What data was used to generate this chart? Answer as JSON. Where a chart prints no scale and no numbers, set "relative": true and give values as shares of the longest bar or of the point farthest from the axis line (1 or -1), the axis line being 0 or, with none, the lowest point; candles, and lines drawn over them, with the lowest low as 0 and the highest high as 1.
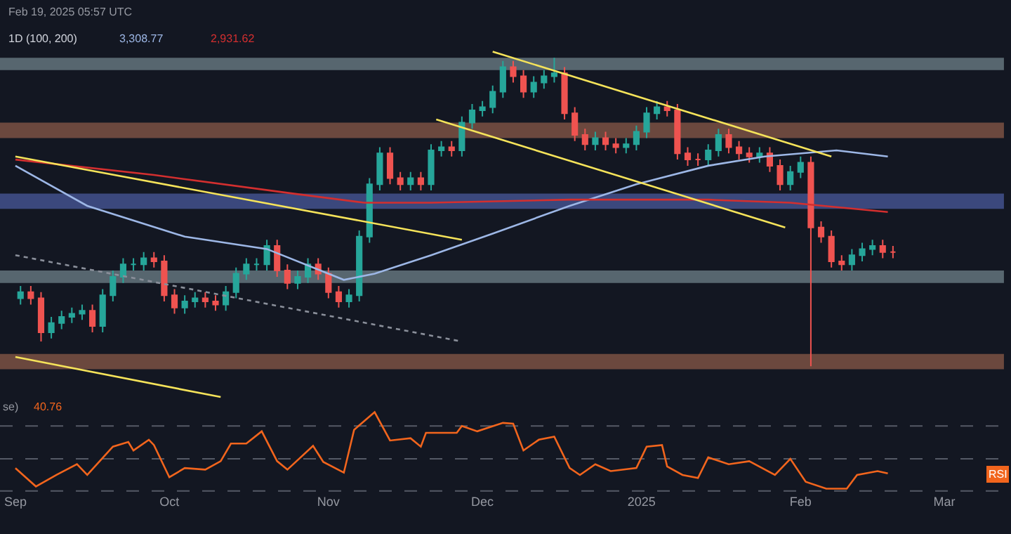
{
  "chart_data": [
    {
      "type": "candlestick",
      "relative": true,
      "tick_labels": false,
      "grid": false,
      "annotations": [
        "Feb 19, 2025 05:57 UTC",
        "1D (100, 200)",
        "3,308.77",
        "2,931.62"
      ],
      "xlim": [
        "2024-08-29",
        "2025-03-14"
      ],
      "x": [
        "2024-09-02",
        "2024-09-04",
        "2024-09-06",
        "2024-09-08",
        "2024-09-10",
        "2024-09-12",
        "2024-09-14",
        "2024-09-16",
        "2024-09-18",
        "2024-09-20",
        "2024-09-22",
        "2024-09-24",
        "2024-09-26",
        "2024-09-28",
        "2024-09-30",
        "2024-10-02",
        "2024-10-04",
        "2024-10-06",
        "2024-10-08",
        "2024-10-10",
        "2024-10-12",
        "2024-10-14",
        "2024-10-16",
        "2024-10-18",
        "2024-10-20",
        "2024-10-22",
        "2024-10-24",
        "2024-10-26",
        "2024-10-28",
        "2024-10-30",
        "2024-11-01",
        "2024-11-03",
        "2024-11-05",
        "2024-11-07",
        "2024-11-09",
        "2024-11-11",
        "2024-11-13",
        "2024-11-15",
        "2024-11-17",
        "2024-11-19",
        "2024-11-21",
        "2024-11-23",
        "2024-11-25",
        "2024-11-27",
        "2024-11-29",
        "2024-12-01",
        "2024-12-03",
        "2024-12-05",
        "2024-12-07",
        "2024-12-09",
        "2024-12-11",
        "2024-12-13",
        "2024-12-15",
        "2024-12-17",
        "2024-12-19",
        "2024-12-21",
        "2024-12-23",
        "2024-12-25",
        "2024-12-27",
        "2024-12-29",
        "2024-12-31",
        "2025-01-02",
        "2025-01-04",
        "2025-01-06",
        "2025-01-08",
        "2025-01-10",
        "2025-01-12",
        "2025-01-14",
        "2025-01-16",
        "2025-01-18",
        "2025-01-20",
        "2025-01-22",
        "2025-01-24",
        "2025-01-26",
        "2025-01-28",
        "2025-01-30",
        "2025-02-01",
        "2025-02-03",
        "2025-02-05",
        "2025-02-07",
        "2025-02-09",
        "2025-02-11",
        "2025-02-13",
        "2025-02-15",
        "2025-02-17",
        "2025-02-19"
      ],
      "ohlc": [
        [
          0.22,
          0.26,
          0.2,
          0.24
        ],
        [
          0.24,
          0.26,
          0.2,
          0.22
        ],
        [
          0.22,
          0.24,
          0.08,
          0.11
        ],
        [
          0.11,
          0.16,
          0.09,
          0.14
        ],
        [
          0.14,
          0.18,
          0.12,
          0.16
        ],
        [
          0.16,
          0.19,
          0.14,
          0.17
        ],
        [
          0.17,
          0.2,
          0.15,
          0.18
        ],
        [
          0.18,
          0.2,
          0.11,
          0.13
        ],
        [
          0.13,
          0.25,
          0.11,
          0.23
        ],
        [
          0.23,
          0.31,
          0.21,
          0.29
        ],
        [
          0.29,
          0.35,
          0.27,
          0.33
        ],
        [
          0.33,
          0.35,
          0.31,
          0.33
        ],
        [
          0.33,
          0.37,
          0.31,
          0.35
        ],
        [
          0.35,
          0.37,
          0.32,
          0.34
        ],
        [
          0.34,
          0.36,
          0.21,
          0.23
        ],
        [
          0.23,
          0.25,
          0.17,
          0.19
        ],
        [
          0.19,
          0.23,
          0.17,
          0.21
        ],
        [
          0.21,
          0.24,
          0.19,
          0.22
        ],
        [
          0.22,
          0.24,
          0.19,
          0.21
        ],
        [
          0.21,
          0.23,
          0.18,
          0.2
        ],
        [
          0.2,
          0.26,
          0.18,
          0.24
        ],
        [
          0.24,
          0.32,
          0.22,
          0.3
        ],
        [
          0.3,
          0.35,
          0.28,
          0.33
        ],
        [
          0.33,
          0.35,
          0.31,
          0.33
        ],
        [
          0.33,
          0.41,
          0.31,
          0.39
        ],
        [
          0.39,
          0.41,
          0.29,
          0.31
        ],
        [
          0.31,
          0.33,
          0.25,
          0.27
        ],
        [
          0.27,
          0.31,
          0.25,
          0.29
        ],
        [
          0.29,
          0.35,
          0.27,
          0.33
        ],
        [
          0.33,
          0.35,
          0.28,
          0.3
        ],
        [
          0.3,
          0.32,
          0.22,
          0.24
        ],
        [
          0.24,
          0.26,
          0.19,
          0.21
        ],
        [
          0.21,
          0.25,
          0.19,
          0.23
        ],
        [
          0.23,
          0.44,
          0.21,
          0.42
        ],
        [
          0.42,
          0.61,
          0.4,
          0.59
        ],
        [
          0.59,
          0.71,
          0.57,
          0.69
        ],
        [
          0.69,
          0.71,
          0.59,
          0.61
        ],
        [
          0.61,
          0.63,
          0.57,
          0.59
        ],
        [
          0.59,
          0.63,
          0.57,
          0.61
        ],
        [
          0.61,
          0.63,
          0.57,
          0.59
        ],
        [
          0.59,
          0.72,
          0.57,
          0.7
        ],
        [
          0.7,
          0.73,
          0.68,
          0.71
        ],
        [
          0.71,
          0.73,
          0.68,
          0.7
        ],
        [
          0.7,
          0.81,
          0.68,
          0.79
        ],
        [
          0.79,
          0.85,
          0.77,
          0.83
        ],
        [
          0.83,
          0.86,
          0.81,
          0.84
        ],
        [
          0.84,
          0.91,
          0.82,
          0.89
        ],
        [
          0.89,
          0.99,
          0.87,
          0.97
        ],
        [
          0.97,
          0.99,
          0.92,
          0.94
        ],
        [
          0.94,
          0.96,
          0.87,
          0.89
        ],
        [
          0.89,
          0.94,
          0.87,
          0.92
        ],
        [
          0.92,
          0.96,
          0.9,
          0.94
        ],
        [
          0.94,
          1.0,
          0.92,
          0.95
        ],
        [
          0.95,
          0.97,
          0.8,
          0.82
        ],
        [
          0.82,
          0.84,
          0.73,
          0.75
        ],
        [
          0.75,
          0.77,
          0.7,
          0.72
        ],
        [
          0.72,
          0.76,
          0.7,
          0.74
        ],
        [
          0.74,
          0.76,
          0.7,
          0.72
        ],
        [
          0.72,
          0.74,
          0.69,
          0.71
        ],
        [
          0.71,
          0.74,
          0.69,
          0.72
        ],
        [
          0.72,
          0.78,
          0.7,
          0.76
        ],
        [
          0.76,
          0.84,
          0.74,
          0.82
        ],
        [
          0.82,
          0.86,
          0.8,
          0.84
        ],
        [
          0.84,
          0.86,
          0.81,
          0.83
        ],
        [
          0.83,
          0.85,
          0.67,
          0.69
        ],
        [
          0.69,
          0.71,
          0.65,
          0.67
        ],
        [
          0.67,
          0.69,
          0.65,
          0.67
        ],
        [
          0.67,
          0.72,
          0.65,
          0.7
        ],
        [
          0.7,
          0.77,
          0.68,
          0.75
        ],
        [
          0.75,
          0.77,
          0.69,
          0.71
        ],
        [
          0.71,
          0.73,
          0.67,
          0.69
        ],
        [
          0.69,
          0.71,
          0.66,
          0.68
        ],
        [
          0.68,
          0.71,
          0.66,
          0.69
        ],
        [
          0.69,
          0.71,
          0.63,
          0.65
        ],
        [
          0.65,
          0.67,
          0.57,
          0.59
        ],
        [
          0.59,
          0.65,
          0.57,
          0.63
        ],
        [
          0.63,
          0.68,
          0.61,
          0.66
        ],
        [
          0.66,
          0.68,
          0.0,
          0.45
        ],
        [
          0.45,
          0.47,
          0.4,
          0.42
        ],
        [
          0.42,
          0.44,
          0.32,
          0.34
        ],
        [
          0.34,
          0.36,
          0.31,
          0.33
        ],
        [
          0.33,
          0.38,
          0.31,
          0.36
        ],
        [
          0.36,
          0.4,
          0.34,
          0.38
        ],
        [
          0.38,
          0.41,
          0.36,
          0.39
        ],
        [
          0.39,
          0.41,
          0.35,
          0.37
        ],
        [
          0.37,
          0.39,
          0.35,
          0.37
        ]
      ],
      "series": [
        {
          "type": "line",
          "color": "#9db7e6",
          "line_style": "solid",
          "x": [
            "2024-09-01",
            "2024-09-15",
            "2024-10-04",
            "2024-10-20",
            "2024-11-04",
            "2024-11-10",
            "2024-11-21",
            "2024-12-03",
            "2024-12-18",
            "2024-12-31",
            "2025-01-14",
            "2025-01-25",
            "2025-02-08",
            "2025-02-18"
          ],
          "values": [
            0.65,
            0.52,
            0.42,
            0.38,
            0.28,
            0.3,
            0.36,
            0.43,
            0.52,
            0.59,
            0.65,
            0.68,
            0.7,
            0.68
          ]
        },
        {
          "type": "line",
          "color": "#d32f2f",
          "line_style": "solid",
          "x": [
            "2024-09-01",
            "2024-09-28",
            "2024-10-25",
            "2024-11-08",
            "2024-11-21",
            "2024-12-18",
            "2025-01-14",
            "2025-01-30",
            "2025-02-18"
          ],
          "values": [
            0.67,
            0.62,
            0.56,
            0.53,
            0.53,
            0.54,
            0.54,
            0.53,
            0.5
          ]
        },
        {
          "type": "line",
          "color": "#f5e35a",
          "line_style": "solid",
          "x": [
            "2024-09-01",
            "2024-11-27"
          ],
          "values": [
            0.68,
            0.41
          ]
        },
        {
          "type": "line",
          "color": "#f5e35a",
          "line_style": "solid",
          "x": [
            "2024-09-01",
            "2024-10-11"
          ],
          "values": [
            0.03,
            -0.1
          ]
        },
        {
          "type": "line",
          "color": "#f5e35a",
          "line_style": "solid",
          "x": [
            "2024-12-03",
            "2025-02-07"
          ],
          "values": [
            1.02,
            0.68
          ]
        },
        {
          "type": "line",
          "color": "#f5e35a",
          "line_style": "solid",
          "x": [
            "2024-11-22",
            "2025-01-29"
          ],
          "values": [
            0.8,
            0.45
          ]
        },
        {
          "type": "line",
          "color": "#8a8f9a",
          "line_style": "dotted",
          "x": [
            "2024-09-01",
            "2024-11-27"
          ],
          "values": [
            0.36,
            0.08
          ]
        }
      ],
      "bands": [
        {
          "axis": "y",
          "from": 0.96,
          "to": 1.0,
          "color": "#6f8189"
        },
        {
          "axis": "y",
          "from": 0.74,
          "to": 0.79,
          "color": "#8a5a48"
        },
        {
          "axis": "y",
          "from": 0.51,
          "to": 0.56,
          "color": "#4a5a9c"
        },
        {
          "axis": "y",
          "from": 0.27,
          "to": 0.31,
          "color": "#6f8189"
        },
        {
          "axis": "y",
          "from": -0.01,
          "to": 0.04,
          "color": "#8a5a48"
        }
      ]
    },
    {
      "type": "line",
      "relative": true,
      "tick_labels": "x",
      "grid": false,
      "annotations": [
        "se)",
        "40.76",
        "RSI"
      ],
      "xlim": [
        "2024-08-29",
        "2025-03-14"
      ],
      "xticks": [
        {
          "value": "2024-09-01",
          "label": "Sep"
        },
        {
          "value": "2024-10-01",
          "label": "Oct"
        },
        {
          "value": "2024-11-01",
          "label": "Nov"
        },
        {
          "value": "2024-12-01",
          "label": "Dec"
        },
        {
          "value": "2025-01-01",
          "label": "2025"
        },
        {
          "value": "2025-02-01",
          "label": "Feb"
        },
        {
          "value": "2025-03-01",
          "label": "Mar"
        }
      ],
      "ref_lines": [
        {
          "axis": "y",
          "value": 0.82,
          "line_style": "dashed",
          "color": "#555a66"
        },
        {
          "axis": "y",
          "value": 0.39,
          "line_style": "dashed",
          "color": "#555a66"
        },
        {
          "axis": "y",
          "value": -0.03,
          "line_style": "dashed",
          "color": "#555a66"
        }
      ],
      "series": [
        {
          "color": "#f2651d",
          "x": [
            "2024-09-01",
            "2024-09-05",
            "2024-09-09",
            "2024-09-13",
            "2024-09-15",
            "2024-09-20",
            "2024-09-23",
            "2024-09-24",
            "2024-09-27",
            "2024-09-28",
            "2024-10-01",
            "2024-10-04",
            "2024-10-08",
            "2024-10-11",
            "2024-10-13",
            "2024-10-16",
            "2024-10-19",
            "2024-10-22",
            "2024-10-24",
            "2024-10-29",
            "2024-10-31",
            "2024-11-04",
            "2024-11-06",
            "2024-11-10",
            "2024-11-13",
            "2024-11-17",
            "2024-11-19",
            "2024-11-20",
            "2024-11-26",
            "2024-11-27",
            "2024-11-30",
            "2024-12-05",
            "2024-12-07",
            "2024-12-09",
            "2024-12-12",
            "2024-12-15",
            "2024-12-18",
            "2024-12-20",
            "2024-12-23",
            "2024-12-26",
            "2024-12-31",
            "2025-01-02",
            "2025-01-05",
            "2025-01-06",
            "2025-01-09",
            "2025-01-12",
            "2025-01-14",
            "2025-01-18",
            "2025-01-22",
            "2025-01-27",
            "2025-01-30",
            "2025-02-02",
            "2025-02-06",
            "2025-02-10",
            "2025-02-12",
            "2025-02-16",
            "2025-02-18"
          ],
          "values": [
            0.27,
            0.03,
            0.18,
            0.32,
            0.18,
            0.55,
            0.61,
            0.5,
            0.64,
            0.57,
            0.15,
            0.27,
            0.25,
            0.36,
            0.59,
            0.59,
            0.75,
            0.36,
            0.25,
            0.56,
            0.35,
            0.21,
            0.77,
            1.0,
            0.63,
            0.66,
            0.55,
            0.73,
            0.73,
            0.82,
            0.75,
            0.86,
            0.85,
            0.5,
            0.64,
            0.68,
            0.27,
            0.18,
            0.32,
            0.23,
            0.27,
            0.55,
            0.57,
            0.29,
            0.18,
            0.14,
            0.41,
            0.32,
            0.36,
            0.18,
            0.39,
            0.09,
            0.0,
            0.0,
            0.18,
            0.23,
            0.2
          ]
        }
      ]
    }
  ]
}
